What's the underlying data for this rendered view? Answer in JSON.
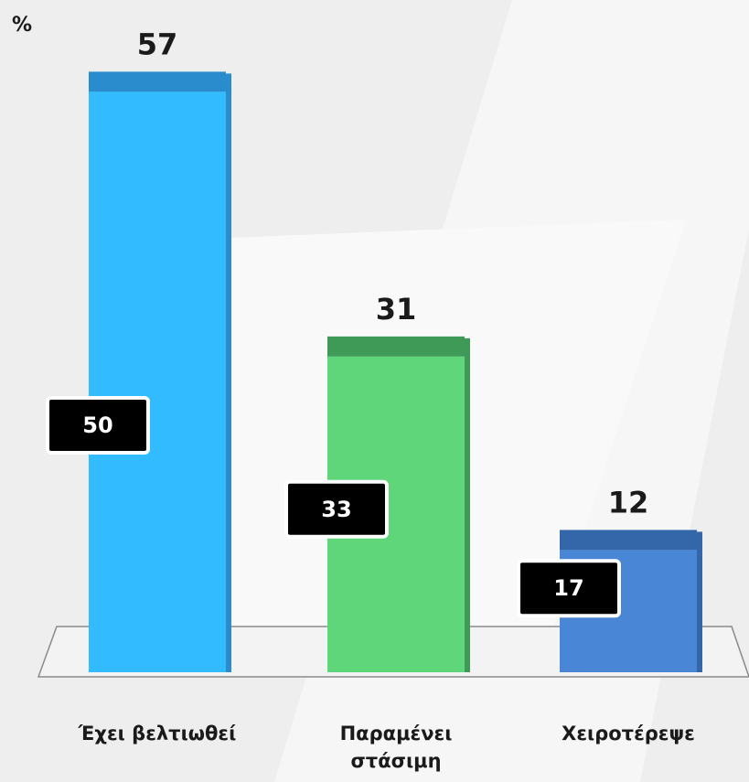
{
  "chart_data": {
    "type": "bar3d",
    "y_label": "%",
    "categories": [
      "Έχει βελτιωθεί",
      "Παραμένει στάσιμη",
      "Χειροτέρεψε"
    ],
    "values": [
      57,
      31,
      12
    ],
    "colors": [
      "#33bbff",
      "#5fd67a",
      "#4a86d6"
    ],
    "top_colors": [
      "#2a8ccc",
      "#3f9a57",
      "#3466aa"
    ],
    "comparison_values": [
      50,
      33,
      17
    ],
    "ylim": [
      0,
      60
    ]
  }
}
